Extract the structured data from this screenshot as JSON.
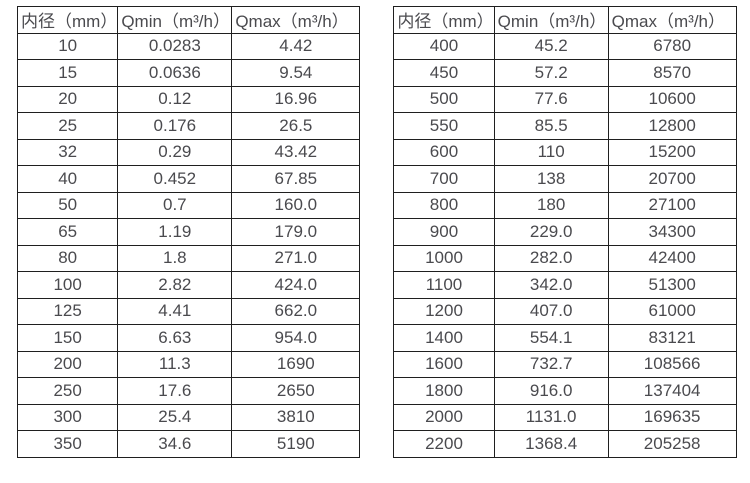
{
  "colors": {
    "background": "#ffffff",
    "table_border": "#1f1f1f",
    "table_text": "#4a4a4e"
  },
  "chart_data": [
    {
      "type": "table",
      "name": "flow-table-small-diameters",
      "headers": [
        "内径（mm）",
        "Qmin（m³/h）",
        "Qmax（m³/h）"
      ],
      "rows": [
        [
          "10",
          "0.0283",
          "4.42"
        ],
        [
          "15",
          "0.0636",
          "9.54"
        ],
        [
          "20",
          "0.12",
          "16.96"
        ],
        [
          "25",
          "0.176",
          "26.5"
        ],
        [
          "32",
          "0.29",
          "43.42"
        ],
        [
          "40",
          "0.452",
          "67.85"
        ],
        [
          "50",
          "0.7",
          "160.0"
        ],
        [
          "65",
          "1.19",
          "179.0"
        ],
        [
          "80",
          "1.8",
          "271.0"
        ],
        [
          "100",
          "2.82",
          "424.0"
        ],
        [
          "125",
          "4.41",
          "662.0"
        ],
        [
          "150",
          "6.63",
          "954.0"
        ],
        [
          "200",
          "11.3",
          "1690"
        ],
        [
          "250",
          "17.6",
          "2650"
        ],
        [
          "300",
          "25.4",
          "3810"
        ],
        [
          "350",
          "34.6",
          "5190"
        ]
      ]
    },
    {
      "type": "table",
      "name": "flow-table-large-diameters",
      "headers": [
        "内径（mm）",
        "Qmin（m³/h）",
        "Qmax（m³/h）"
      ],
      "rows": [
        [
          "400",
          "45.2",
          "6780"
        ],
        [
          "450",
          "57.2",
          "8570"
        ],
        [
          "500",
          "77.6",
          "10600"
        ],
        [
          "550",
          "85.5",
          "12800"
        ],
        [
          "600",
          "110",
          "15200"
        ],
        [
          "700",
          "138",
          "20700"
        ],
        [
          "800",
          "180",
          "27100"
        ],
        [
          "900",
          "229.0",
          "34300"
        ],
        [
          "1000",
          "282.0",
          "42400"
        ],
        [
          "1100",
          "342.0",
          "51300"
        ],
        [
          "1200",
          "407.0",
          "61000"
        ],
        [
          "1400",
          "554.1",
          "83121"
        ],
        [
          "1600",
          "732.7",
          "108566"
        ],
        [
          "1800",
          "916.0",
          "137404"
        ],
        [
          "2000",
          "1131.0",
          "169635"
        ],
        [
          "2200",
          "1368.4",
          "205258"
        ]
      ]
    }
  ]
}
